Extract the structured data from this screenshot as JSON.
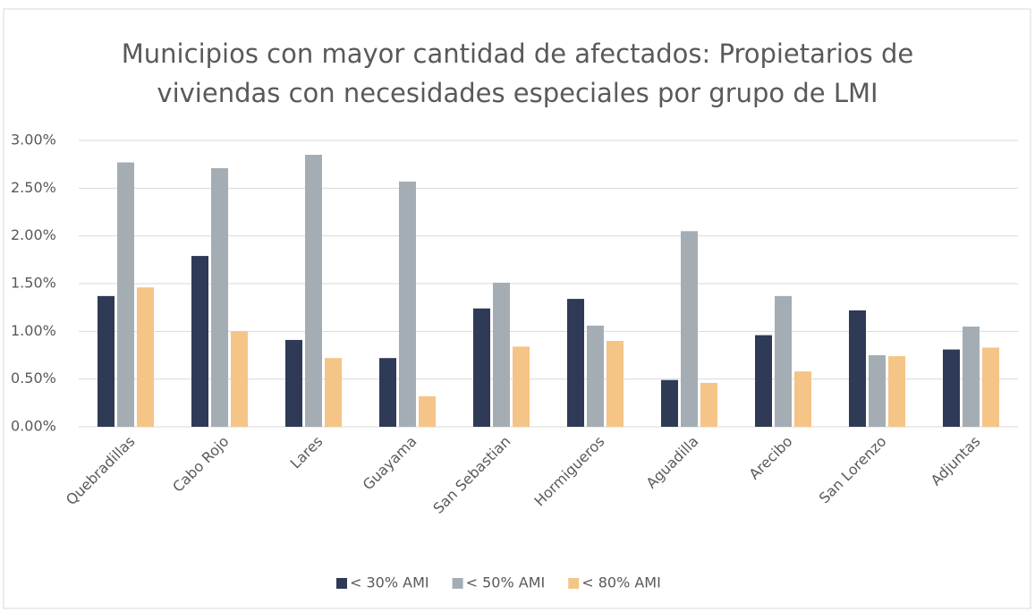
{
  "chart_data": {
    "type": "bar",
    "title": "Municipios con mayor cantidad de afectados: Propietarios de viviendas con necesidades especiales por grupo de LMI",
    "categories": [
      "Quebradillas",
      "Cabo Rojo",
      "Lares",
      "Guayama",
      "San Sebastian",
      "Hormigueros",
      "Aguadilla",
      "Arecibo",
      "San Lorenzo",
      "Adjuntas"
    ],
    "series": [
      {
        "name": "< 30% AMI",
        "color": "#2e3a56",
        "values": [
          1.37,
          1.79,
          0.91,
          0.72,
          1.24,
          1.34,
          0.49,
          0.96,
          1.22,
          0.81
        ]
      },
      {
        "name": "< 50% AMI",
        "color": "#a5adb4",
        "values": [
          2.77,
          2.71,
          2.85,
          2.57,
          1.51,
          1.06,
          2.05,
          1.37,
          0.75,
          1.05
        ]
      },
      {
        "name": "< 80% AMI",
        "color": "#f5c487",
        "values": [
          1.46,
          1.0,
          0.72,
          0.32,
          0.84,
          0.9,
          0.46,
          0.58,
          0.74,
          0.83
        ]
      }
    ],
    "ylim": [
      0,
      3
    ],
    "yticks": [
      {
        "value": 0,
        "label": "0.00%"
      },
      {
        "value": 0.5,
        "label": "0.50%"
      },
      {
        "value": 1,
        "label": "1.00%"
      },
      {
        "value": 1.5,
        "label": "1.50%"
      },
      {
        "value": 2,
        "label": "2.00%"
      },
      {
        "value": 2.5,
        "label": "2.50%"
      },
      {
        "value": 3,
        "label": "3.00%"
      }
    ],
    "grid": true,
    "legend": "bottom"
  }
}
